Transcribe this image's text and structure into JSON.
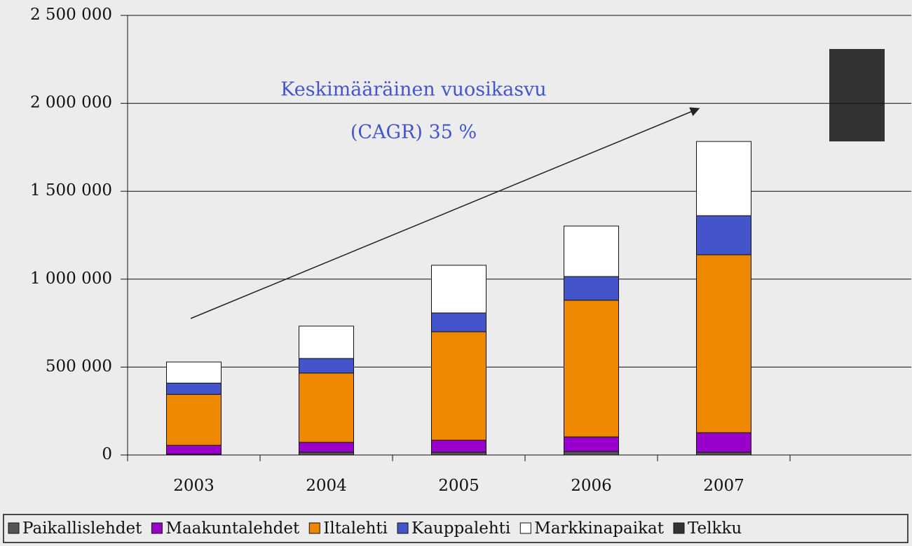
{
  "chart_data": {
    "type": "stacked_bar",
    "categories": [
      "2003",
      "2004",
      "2005",
      "2006",
      "2007",
      null
    ],
    "series": [
      {
        "name": "Paikallislehdet",
        "color": "#555555",
        "values": [
          5000,
          16000,
          16000,
          20000,
          16000,
          null
        ]
      },
      {
        "name": "Maakuntalehdet",
        "color": "#9900cc",
        "values": [
          50000,
          56000,
          68000,
          83000,
          111000,
          null
        ]
      },
      {
        "name": "Iltalehti",
        "color": "#ee8800",
        "values": [
          290000,
          394000,
          617000,
          777000,
          1012000,
          null
        ]
      },
      {
        "name": "Kauppalehti",
        "color": "#4455cc",
        "values": [
          64000,
          83000,
          107000,
          135000,
          222000,
          null
        ]
      },
      {
        "name": "Markkinapaikat",
        "color": "#ffffff",
        "values": [
          120000,
          184000,
          271000,
          287000,
          422000,
          null
        ]
      },
      {
        "name": "Telkku",
        "color": "#333333",
        "values": [
          null,
          null,
          null,
          null,
          null,
          null
        ]
      }
    ],
    "ylim": [
      0,
      2500000
    ],
    "yticks": [
      0,
      {
        "value": 500000,
        "label": "500 000"
      },
      {
        "value": 1000000,
        "label": "1 000 000"
      },
      {
        "value": 1500000,
        "label": "1 500 000"
      },
      {
        "value": 2000000,
        "label": "2 000 000"
      },
      {
        "value": 2500000,
        "label": "2 500 000"
      }
    ],
    "grid": true,
    "legend": "bottom",
    "annotations": [
      "Keskimääräinen vuosikasvu",
      "(CAGR) 35 %"
    ]
  }
}
